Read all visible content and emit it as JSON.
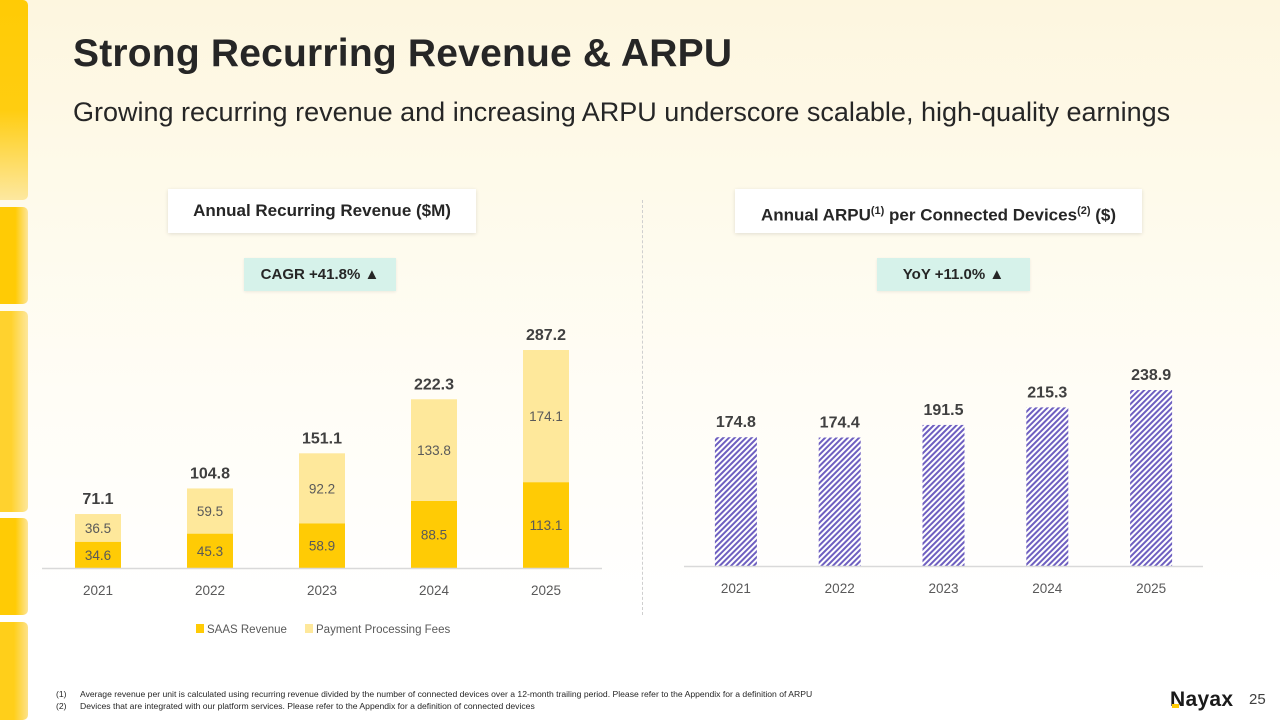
{
  "slide": {
    "title": "Strong Recurring Revenue & ARPU",
    "subtitle": "Growing recurring revenue and increasing ARPU underscore scalable, high-quality earnings",
    "page_number": "25",
    "logo_text": "Nayax"
  },
  "left_panel": {
    "title": "Annual Recurring Revenue ($M)",
    "badge": "CAGR +41.8% ▲"
  },
  "right_panel": {
    "title_part1": "Annual ARPU",
    "title_sup1": "(1)",
    "title_part2": " per Connected Devices",
    "title_sup2": "(2)",
    "title_part3": " ($)",
    "badge": "YoY +11.0% ▲"
  },
  "footnotes": [
    {
      "num": "(1)",
      "text": "Average revenue per unit is calculated using recurring revenue divided by the number of connected devices over a 12-month trailing period. Please refer to the Appendix for a definition of ARPU"
    },
    {
      "num": "(2)",
      "text": "Devices that are integrated with our platform services. Please refer to the Appendix for a definition of connected devices"
    }
  ],
  "colors": {
    "saas": "#ffcb05",
    "payment": "#fee89b",
    "arpu_hatch": "#6e5fc0",
    "badge_bg": "#d6f2ea"
  },
  "chart_data": [
    {
      "type": "bar",
      "stacked": true,
      "title": "Annual Recurring Revenue ($M)",
      "categories": [
        "2021",
        "2022",
        "2023",
        "2024",
        "2025"
      ],
      "series": [
        {
          "name": "SAAS Revenue",
          "values": [
            34.6,
            45.3,
            58.9,
            88.5,
            113.1
          ]
        },
        {
          "name": "Payment Processing Fees",
          "values": [
            36.5,
            59.5,
            92.2,
            133.8,
            174.1
          ]
        }
      ],
      "totals": [
        71.1,
        104.8,
        151.1,
        222.3,
        287.2
      ],
      "xlabel": "",
      "ylabel": "",
      "ylim": [
        0,
        287.2
      ],
      "grid": false,
      "legend": "bottom-center"
    },
    {
      "type": "bar",
      "stacked": false,
      "title": "Annual ARPU per Connected Devices ($)",
      "categories": [
        "2021",
        "2022",
        "2023",
        "2024",
        "2025"
      ],
      "values": [
        174.8,
        174.4,
        191.5,
        215.3,
        238.9
      ],
      "xlabel": "",
      "ylabel": "",
      "ylim": [
        0,
        238.9
      ],
      "grid": false,
      "legend": "none",
      "pattern": "diagonal-hatch"
    }
  ]
}
